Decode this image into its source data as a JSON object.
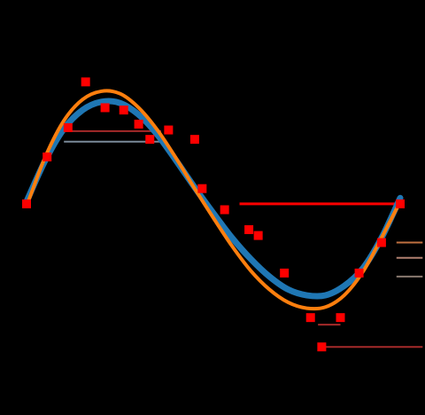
{
  "chart_data": {
    "type": "scatter",
    "title": "",
    "xlabel": "",
    "ylabel": "",
    "xlim": [
      0,
      1
    ],
    "ylim": [
      -1.12,
      1.02
    ],
    "grid": false,
    "series": [
      {
        "kind": "scatter",
        "color": "#ff0000",
        "points": [
          [
            0.0,
            0.0
          ],
          [
            0.055,
            0.4
          ],
          [
            0.111,
            0.65
          ],
          [
            0.158,
            1.04
          ],
          [
            0.21,
            0.82
          ],
          [
            0.26,
            0.8
          ],
          [
            0.3,
            0.68
          ],
          [
            0.33,
            0.55
          ],
          [
            0.38,
            0.63
          ],
          [
            0.47,
            0.13
          ],
          [
            0.53,
            -0.05
          ],
          [
            0.62,
            -0.27
          ],
          [
            0.69,
            -0.59
          ],
          [
            0.76,
            -0.97
          ],
          [
            0.84,
            -0.97
          ],
          [
            0.89,
            -0.59
          ],
          [
            0.95,
            -0.33
          ],
          [
            1.0,
            0.0
          ]
        ]
      },
      {
        "kind": "line",
        "color": "#1f77b4",
        "x": [
          0,
          0.05,
          0.1,
          0.15,
          0.2,
          0.25,
          0.3,
          0.35,
          0.4,
          0.45,
          0.5,
          0.55,
          0.6,
          0.65,
          0.7,
          0.75,
          0.8,
          0.85,
          0.9,
          0.95,
          1.0
        ],
        "y": [
          0.02,
          0.37,
          0.64,
          0.8,
          0.87,
          0.86,
          0.76,
          0.59,
          0.37,
          0.14,
          -0.08,
          -0.29,
          -0.47,
          -0.62,
          -0.73,
          -0.78,
          -0.78,
          -0.7,
          -0.55,
          -0.29,
          0.05
        ]
      },
      {
        "kind": "line",
        "color": "#ff7f0e",
        "x": [
          0,
          0.05,
          0.1,
          0.15,
          0.2,
          0.25,
          0.3,
          0.35,
          0.4,
          0.45,
          0.5,
          0.55,
          0.6,
          0.65,
          0.7,
          0.75,
          0.8,
          0.85,
          0.9,
          0.95,
          1.0
        ],
        "y": [
          -0.02,
          0.4,
          0.71,
          0.89,
          0.96,
          0.94,
          0.82,
          0.63,
          0.39,
          0.13,
          -0.12,
          -0.36,
          -0.57,
          -0.73,
          -0.84,
          -0.89,
          -0.88,
          -0.78,
          -0.58,
          -0.29,
          0.02
        ]
      }
    ],
    "guides": [
      {
        "from": [
          0.1,
          0.62
        ],
        "to": [
          0.36,
          0.62
        ],
        "color": "#a52a2a",
        "width": 2
      },
      {
        "from": [
          0.1,
          0.53
        ],
        "to": [
          0.36,
          0.53
        ],
        "color": "#7a8a99",
        "width": 2
      },
      {
        "from": [
          0.57,
          0.0
        ],
        "to": [
          1.0,
          0.0
        ],
        "color": "#ff0000",
        "width": 3
      },
      {
        "from": [
          0.99,
          -0.33
        ],
        "to": [
          1.06,
          -0.33
        ],
        "color": "#c07040",
        "width": 2
      },
      {
        "from": [
          0.99,
          -0.46
        ],
        "to": [
          1.06,
          -0.46
        ],
        "color": "#b08070",
        "width": 2
      },
      {
        "from": [
          0.99,
          -0.62
        ],
        "to": [
          1.06,
          -0.62
        ],
        "color": "#8a7a70",
        "width": 2
      },
      {
        "from": [
          0.78,
          -1.03
        ],
        "to": [
          0.84,
          -1.03
        ],
        "color": "#a52a2a",
        "width": 2
      },
      {
        "from": [
          0.79,
          -1.22
        ],
        "to": [
          1.06,
          -1.22
        ],
        "color": "#a52a2a",
        "width": 2
      }
    ],
    "extra_markers": [
      {
        "x": 0.45,
        "y": 0.55,
        "color": "#ff0000"
      },
      {
        "x": 0.595,
        "y": -0.22,
        "color": "#ff0000"
      },
      {
        "x": 0.79,
        "y": -1.22,
        "color": "#ff0000"
      }
    ]
  }
}
